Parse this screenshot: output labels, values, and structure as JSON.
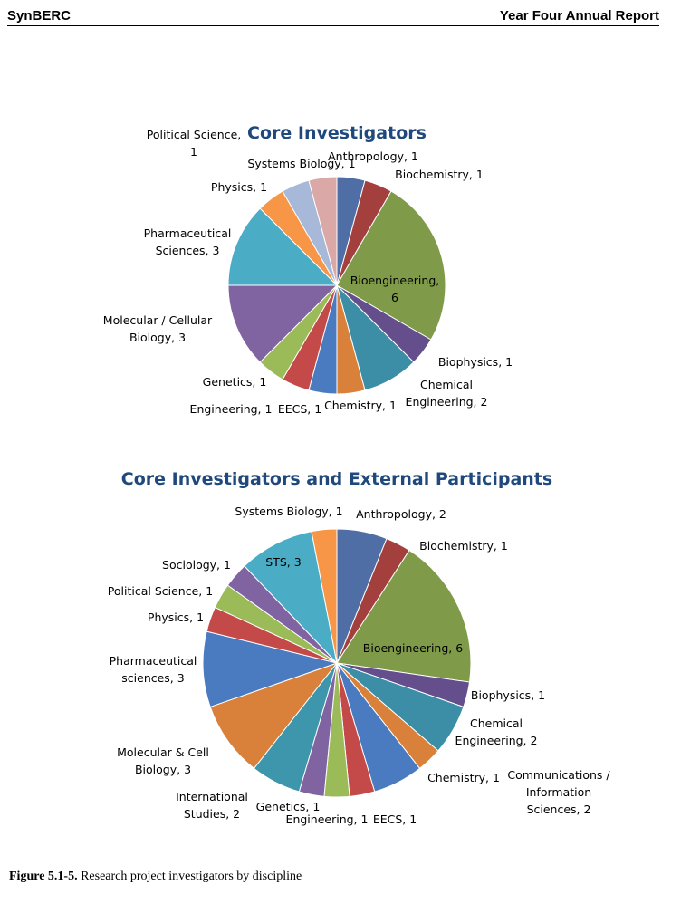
{
  "header": {
    "left": "SynBERC",
    "right": "Year Four Annual Report"
  },
  "caption": {
    "label": "Figure 5.1-5.",
    "text": " Research project investigators by discipline"
  },
  "chart_data": [
    {
      "type": "pie",
      "title": "Core Investigators",
      "slices": [
        {
          "label": "Anthropology, 1",
          "value": 1,
          "color": "#4f6ea5"
        },
        {
          "label": "Biochemistry, 1",
          "value": 1,
          "color": "#a3403e"
        },
        {
          "label": "Bioengineering, 6",
          "value": 6,
          "color": "#7f9a48"
        },
        {
          "label": "Biophysics, 1",
          "value": 1,
          "color": "#644f8c"
        },
        {
          "label": "Chemical Engineering, 2",
          "value": 2,
          "color": "#3b8ea5"
        },
        {
          "label": "Chemistry, 1",
          "value": 1,
          "color": "#d9813b"
        },
        {
          "label": "EECS, 1",
          "value": 1,
          "color": "#4a7bc0"
        },
        {
          "label": "Engineering, 1",
          "value": 1,
          "color": "#c34a48"
        },
        {
          "label": "Genetics, 1",
          "value": 1,
          "color": "#9bbb59"
        },
        {
          "label": "Molecular / Cellular Biology, 3",
          "value": 3,
          "color": "#8064a2"
        },
        {
          "label": "Pharmaceutical Sciences, 3",
          "value": 3,
          "color": "#4bacc6"
        },
        {
          "label": "Physics, 1",
          "value": 1,
          "color": "#f79646"
        },
        {
          "label": "Systems Biology, 1",
          "value": 1,
          "color": "#a8b8d8"
        },
        {
          "label": "Political Science, 1",
          "value": 1,
          "color": "#dba8a8"
        }
      ]
    },
    {
      "type": "pie",
      "title": "Core Investigators and External Participants",
      "slices": [
        {
          "label": "Anthropology, 2",
          "value": 2,
          "color": "#4f6ea5"
        },
        {
          "label": "Biochemistry, 1",
          "value": 1,
          "color": "#a3403e"
        },
        {
          "label": "Bioengineering, 6",
          "value": 6,
          "color": "#7f9a48"
        },
        {
          "label": "Biophysics, 1",
          "value": 1,
          "color": "#644f8c"
        },
        {
          "label": "Chemical Engineering, 2",
          "value": 2,
          "color": "#3b8ea5"
        },
        {
          "label": "Chemistry, 1",
          "value": 1,
          "color": "#d9813b"
        },
        {
          "label": "Communications / Information Sciences, 2",
          "value": 2,
          "color": "#4a7bc0"
        },
        {
          "label": "EECS, 1",
          "value": 1,
          "color": "#c34a48"
        },
        {
          "label": "Engineering, 1",
          "value": 1,
          "color": "#9bbb59"
        },
        {
          "label": "Genetics, 1",
          "value": 1,
          "color": "#8064a2"
        },
        {
          "label": "International Studies, 2",
          "value": 2,
          "color": "#3d96ab"
        },
        {
          "label": "Molecular & Cell Biology, 3",
          "value": 3,
          "color": "#d9813b"
        },
        {
          "label": "Pharmaceutical sciences, 3",
          "value": 3,
          "color": "#4a7bc0"
        },
        {
          "label": "Physics, 1",
          "value": 1,
          "color": "#c34a48"
        },
        {
          "label": "Political Science, 1",
          "value": 1,
          "color": "#9bbb59"
        },
        {
          "label": "Sociology, 1",
          "value": 1,
          "color": "#8064a2"
        },
        {
          "label": "STS, 3",
          "value": 3,
          "color": "#4bacc6"
        },
        {
          "label": "Systems Biology, 1",
          "value": 1,
          "color": "#f79646"
        }
      ]
    }
  ]
}
